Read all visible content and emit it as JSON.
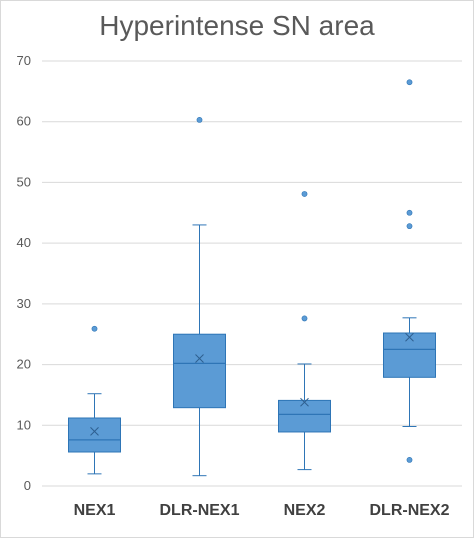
{
  "chart_data": {
    "type": "box",
    "title": "Hyperintense SN area",
    "xlabel": "",
    "ylabel": "",
    "ylim": [
      0,
      70
    ],
    "yticks": [
      0,
      10,
      20,
      30,
      40,
      50,
      60,
      70
    ],
    "grid": true,
    "color": "#5b9bd5",
    "edge_color": "#2e75b6",
    "categories": [
      "NEX1",
      "DLR-NEX1",
      "NEX2",
      "DLR-NEX2"
    ],
    "boxes": [
      {
        "category": "NEX1",
        "min": 2.0,
        "q1": 5.6,
        "median": 7.6,
        "q3": 11.2,
        "max": 15.2,
        "mean": 9.0,
        "outliers": [
          25.9
        ]
      },
      {
        "category": "DLR-NEX1",
        "min": 1.7,
        "q1": 12.9,
        "median": 20.2,
        "q3": 25.0,
        "max": 43.0,
        "mean": 21.0,
        "outliers": [
          60.3
        ]
      },
      {
        "category": "NEX2",
        "min": 2.7,
        "q1": 8.9,
        "median": 11.8,
        "q3": 14.1,
        "max": 20.1,
        "mean": 13.8,
        "outliers": [
          27.6,
          48.1
        ]
      },
      {
        "category": "DLR-NEX2",
        "min": 9.8,
        "q1": 17.9,
        "median": 22.5,
        "q3": 25.2,
        "max": 27.7,
        "mean": 24.5,
        "outliers": [
          4.3,
          42.8,
          45.0,
          66.5
        ]
      }
    ]
  }
}
